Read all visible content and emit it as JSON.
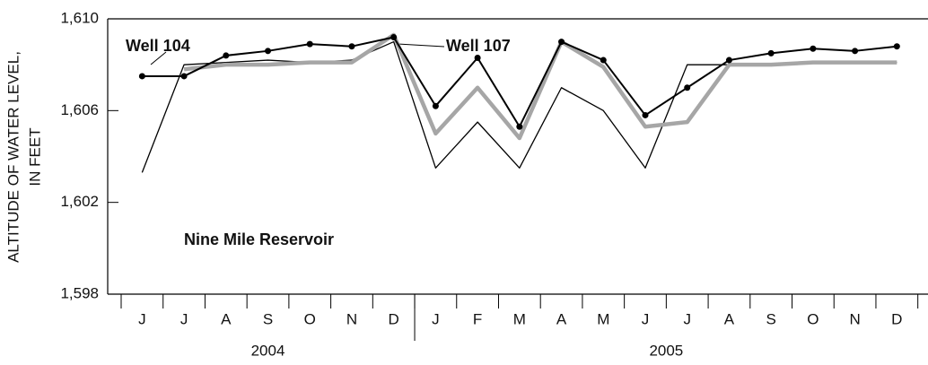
{
  "chart_data": {
    "type": "line",
    "ylabel": [
      "ALTITUDE OF WATER LEVEL,",
      "IN FEET"
    ],
    "categories": [
      "J",
      "J",
      "A",
      "S",
      "O",
      "N",
      "D",
      "J",
      "F",
      "M",
      "A",
      "M",
      "J",
      "J",
      "A",
      "S",
      "O",
      "N",
      "D"
    ],
    "year_labels": [
      "2004",
      "2005"
    ],
    "ylim": [
      1598,
      1610
    ],
    "yticks": [
      {
        "value": 1598,
        "label": "1,598"
      },
      {
        "value": 1602,
        "label": "1,602"
      },
      {
        "value": 1606,
        "label": "1,606"
      },
      {
        "value": 1610,
        "label": "1,610"
      }
    ],
    "series": [
      {
        "name": "Nine Mile Reservoir",
        "color": "#000000",
        "values": [
          1603.3,
          1608.0,
          1608.1,
          1608.2,
          1608.1,
          1608.2,
          1609.0,
          1603.5,
          1605.5,
          1603.5,
          1607.0,
          1606.0,
          1603.5,
          1608.0,
          1608.0,
          1608.0,
          1608.1,
          1608.1,
          1608.1
        ]
      },
      {
        "name": "Well 107",
        "color": "#a6a6a6",
        "values": [
          null,
          1607.8,
          1608.0,
          1608.0,
          1608.1,
          1608.1,
          1609.3,
          1605.0,
          1607.0,
          1604.8,
          1609.0,
          1607.9,
          1605.3,
          1605.5,
          1608.0,
          1608.0,
          1608.1,
          1608.1,
          1608.1
        ]
      },
      {
        "name": "Well 104",
        "color": "#000000",
        "markers": true,
        "values": [
          1607.5,
          1607.5,
          1608.4,
          1608.6,
          1608.9,
          1608.8,
          1609.2,
          1606.2,
          1608.3,
          1605.3,
          1609.0,
          1608.2,
          1605.8,
          1607.0,
          1608.2,
          1608.5,
          1608.7,
          1608.6,
          1608.8
        ]
      }
    ]
  }
}
